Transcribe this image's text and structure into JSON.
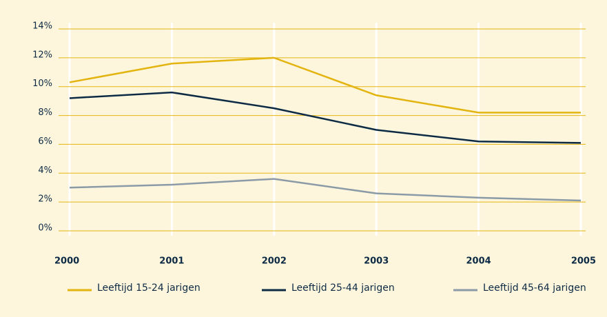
{
  "chart_data": {
    "type": "line",
    "categories": [
      "2000",
      "2001",
      "2002",
      "2003",
      "2004",
      "2005"
    ],
    "series": [
      {
        "name": "Leeftijd 15-24 jarigen",
        "color": "#e3b40f",
        "values": [
          10.3,
          11.6,
          12.0,
          9.4,
          8.2,
          8.2
        ]
      },
      {
        "name": "Leeftijd 25-44 jarigen",
        "color": "#0d2a45",
        "values": [
          9.2,
          9.6,
          8.5,
          7.0,
          6.2,
          6.1
        ]
      },
      {
        "name": "Leeftijd 45-64 jarigen",
        "color": "#8a9aa6",
        "values": [
          3.0,
          3.2,
          3.6,
          2.6,
          2.3,
          2.1
        ]
      }
    ],
    "ylim": [
      0,
      14
    ],
    "yticks": [
      {
        "value": 0,
        "label": "0%"
      },
      {
        "value": 2,
        "label": "2%"
      },
      {
        "value": 4,
        "label": "4%"
      },
      {
        "value": 6,
        "label": "6%"
      },
      {
        "value": 8,
        "label": "8%"
      },
      {
        "value": 10,
        "label": "10%"
      },
      {
        "value": 12,
        "label": "12%"
      },
      {
        "value": 14,
        "label": "14%"
      }
    ],
    "grid": true,
    "legend": "bottom"
  }
}
